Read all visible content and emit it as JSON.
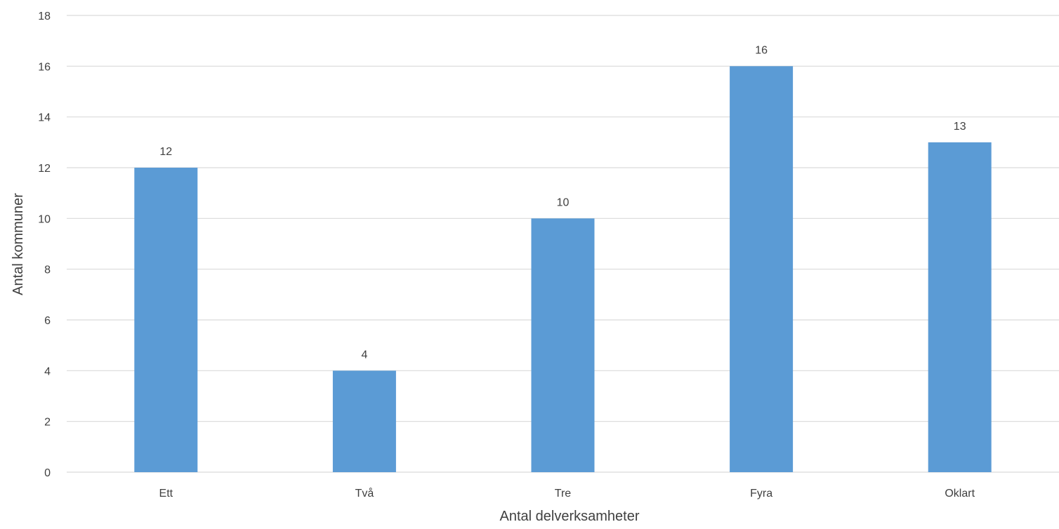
{
  "chart_data": {
    "type": "bar",
    "categories": [
      "Ett",
      "Två",
      "Tre",
      "Fyra",
      "Oklart"
    ],
    "values": [
      12,
      4,
      10,
      16,
      13
    ],
    "title": "",
    "xlabel": "Antal delverksamheter",
    "ylabel": "Antal kommuner",
    "ylim": [
      0,
      18
    ],
    "yticks": [
      0,
      2,
      4,
      6,
      8,
      10,
      12,
      14,
      16,
      18
    ],
    "grid": true,
    "data_labels": true,
    "legend": "none",
    "colors": {
      "bar": "#5B9BD5",
      "grid": "#D9D9D9",
      "text": "#404040"
    }
  }
}
